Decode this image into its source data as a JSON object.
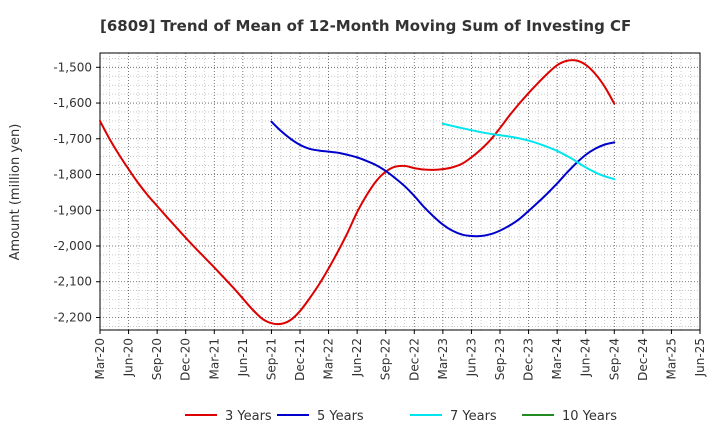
{
  "chart_data": {
    "type": "line",
    "title": "[6809]  Trend of Mean of 12-Month Moving Sum of Investing CF",
    "xlabel": "",
    "ylabel": "Amount (million yen)",
    "ylim": [
      -2235,
      -1460
    ],
    "yticks": [
      -1500,
      -1600,
      -1700,
      -1800,
      -1900,
      -2000,
      -2100,
      -2200
    ],
    "ytick_labels": [
      "-1,500",
      "-1,600",
      "-1,700",
      "-1,800",
      "-1,900",
      "-2,000",
      "-2,100",
      "-2,200"
    ],
    "x_categories": [
      "Mar-20",
      "Jun-20",
      "Sep-20",
      "Dec-20",
      "Mar-21",
      "Jun-21",
      "Sep-21",
      "Dec-21",
      "Mar-22",
      "Jun-22",
      "Sep-22",
      "Dec-22",
      "Mar-23",
      "Jun-23",
      "Sep-23",
      "Dec-23",
      "Mar-24",
      "Jun-24",
      "Sep-24",
      "Dec-24",
      "Mar-25",
      "Jun-25"
    ],
    "grid": true,
    "legend_position": "bottom",
    "series": [
      {
        "name": "3 Years",
        "color": "#dd0000",
        "points": [
          [
            0,
            -1650
          ],
          [
            0.33,
            -1700
          ],
          [
            0.67,
            -1745
          ],
          [
            1,
            -1785
          ],
          [
            1.33,
            -1823
          ],
          [
            1.67,
            -1858
          ],
          [
            2,
            -1888
          ],
          [
            2.33,
            -1918
          ],
          [
            2.67,
            -1948
          ],
          [
            3,
            -1977
          ],
          [
            3.33,
            -2005
          ],
          [
            3.67,
            -2033
          ],
          [
            4,
            -2060
          ],
          [
            4.33,
            -2088
          ],
          [
            4.67,
            -2117
          ],
          [
            5,
            -2147
          ],
          [
            5.33,
            -2177
          ],
          [
            5.67,
            -2203
          ],
          [
            6,
            -2216
          ],
          [
            6.33,
            -2218
          ],
          [
            6.67,
            -2207
          ],
          [
            7,
            -2182
          ],
          [
            7.33,
            -2147
          ],
          [
            7.67,
            -2107
          ],
          [
            8,
            -2063
          ],
          [
            8.33,
            -2015
          ],
          [
            8.67,
            -1962
          ],
          [
            9,
            -1905
          ],
          [
            9.33,
            -1858
          ],
          [
            9.67,
            -1818
          ],
          [
            10,
            -1792
          ],
          [
            10.33,
            -1778
          ],
          [
            10.67,
            -1776
          ],
          [
            11,
            -1782
          ],
          [
            11.33,
            -1786
          ],
          [
            11.67,
            -1787
          ],
          [
            12,
            -1785
          ],
          [
            12.33,
            -1780
          ],
          [
            12.67,
            -1770
          ],
          [
            13,
            -1752
          ],
          [
            13.33,
            -1730
          ],
          [
            13.67,
            -1703
          ],
          [
            14,
            -1670
          ],
          [
            14.33,
            -1635
          ],
          [
            14.67,
            -1602
          ],
          [
            15,
            -1572
          ],
          [
            15.33,
            -1544
          ],
          [
            15.67,
            -1517
          ],
          [
            16,
            -1494
          ],
          [
            16.33,
            -1482
          ],
          [
            16.67,
            -1481
          ],
          [
            17,
            -1493
          ],
          [
            17.33,
            -1518
          ],
          [
            17.67,
            -1555
          ],
          [
            18,
            -1602
          ]
        ]
      },
      {
        "name": "5 Years",
        "color": "#0000cc",
        "points": [
          [
            6,
            -1652
          ],
          [
            6.33,
            -1678
          ],
          [
            6.67,
            -1700
          ],
          [
            7,
            -1717
          ],
          [
            7.33,
            -1728
          ],
          [
            7.67,
            -1733
          ],
          [
            8,
            -1736
          ],
          [
            8.33,
            -1739
          ],
          [
            8.67,
            -1745
          ],
          [
            9,
            -1752
          ],
          [
            9.33,
            -1762
          ],
          [
            9.67,
            -1774
          ],
          [
            10,
            -1790
          ],
          [
            10.33,
            -1810
          ],
          [
            10.67,
            -1833
          ],
          [
            11,
            -1860
          ],
          [
            11.33,
            -1890
          ],
          [
            11.67,
            -1917
          ],
          [
            12,
            -1940
          ],
          [
            12.33,
            -1957
          ],
          [
            12.67,
            -1968
          ],
          [
            13,
            -1972
          ],
          [
            13.33,
            -1972
          ],
          [
            13.67,
            -1967
          ],
          [
            14,
            -1957
          ],
          [
            14.33,
            -1943
          ],
          [
            14.67,
            -1925
          ],
          [
            15,
            -1902
          ],
          [
            15.33,
            -1878
          ],
          [
            15.67,
            -1852
          ],
          [
            16,
            -1825
          ],
          [
            16.33,
            -1796
          ],
          [
            16.67,
            -1768
          ],
          [
            17,
            -1745
          ],
          [
            17.33,
            -1728
          ],
          [
            17.67,
            -1716
          ],
          [
            18,
            -1710
          ]
        ]
      },
      {
        "name": "7 Years",
        "color": "#00e5ee",
        "points": [
          [
            12,
            -1658
          ],
          [
            12.5,
            -1667
          ],
          [
            13,
            -1676
          ],
          [
            13.5,
            -1684
          ],
          [
            14,
            -1690
          ],
          [
            14.5,
            -1696
          ],
          [
            15,
            -1705
          ],
          [
            15.5,
            -1718
          ],
          [
            16,
            -1734
          ],
          [
            16.5,
            -1755
          ],
          [
            17,
            -1780
          ],
          [
            17.5,
            -1800
          ],
          [
            18,
            -1813
          ]
        ]
      },
      {
        "name": "10 Years",
        "color": "#228b22",
        "points": []
      }
    ]
  }
}
